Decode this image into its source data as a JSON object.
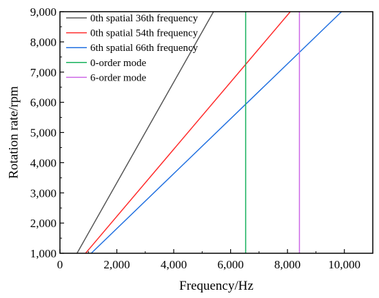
{
  "chart_data": {
    "type": "line",
    "xlabel": "Frequency/Hz",
    "ylabel": "Rotation rate/rpm",
    "xlim": [
      0,
      11000
    ],
    "ylim": [
      1000,
      9000
    ],
    "x_ticks": [
      0,
      2000,
      4000,
      6000,
      8000,
      10000
    ],
    "x_tick_labels": [
      "0",
      "2,000",
      "4,000",
      "6,000",
      "8,000",
      "10,000"
    ],
    "y_ticks": [
      1000,
      2000,
      3000,
      4000,
      5000,
      6000,
      7000,
      8000,
      9000
    ],
    "y_tick_labels": [
      "1,000",
      "2,000",
      "3,000",
      "4,000",
      "5,000",
      "6,000",
      "7,000",
      "8,000",
      "9,000"
    ],
    "grid": false,
    "legend_position": "top-left",
    "series": [
      {
        "name": "0th spatial 36th frequency",
        "color": "#555555",
        "kind": "line",
        "points": [
          [
            600,
            1000
          ],
          [
            5400,
            9000
          ]
        ]
      },
      {
        "name": "0th spatial 54th frequency",
        "color": "#ff2a2a",
        "kind": "line",
        "points": [
          [
            900,
            1000
          ],
          [
            8100,
            9000
          ]
        ]
      },
      {
        "name": "6th spatial 66th frequency",
        "color": "#1f6fe0",
        "kind": "line",
        "points": [
          [
            1100,
            1000
          ],
          [
            9900,
            9000
          ]
        ]
      },
      {
        "name": "0-order mode",
        "color": "#14b05a",
        "kind": "vline",
        "x": 6530
      },
      {
        "name": "6-order mode",
        "color": "#cc66e6",
        "kind": "vline",
        "x": 8420
      }
    ]
  }
}
